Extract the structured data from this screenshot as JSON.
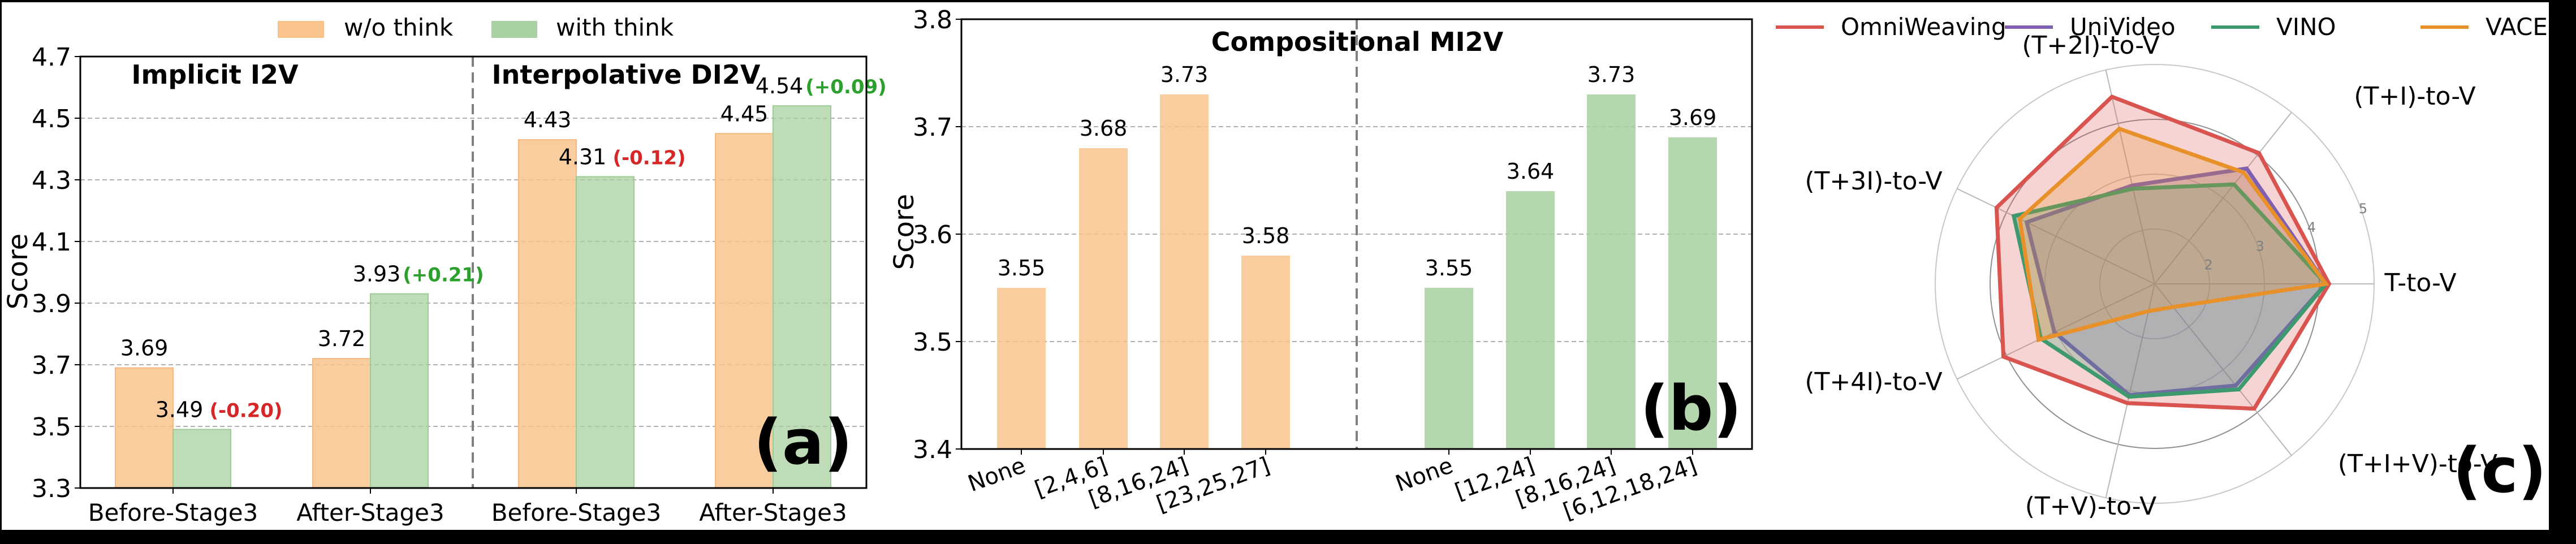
{
  "colors": {
    "wo_think": "#f8c48c",
    "with_think": "#a8d0a0",
    "delta_up": "#2ca02c",
    "delta_down": "#d62728",
    "grid": "#b0b0b0",
    "divider": "#808080"
  },
  "chart_data": [
    {
      "id": "a",
      "type": "bar",
      "panel_label": "(a)",
      "ylabel": "Score",
      "ylim": [
        3.3,
        4.7
      ],
      "yticks": [
        3.3,
        3.5,
        3.7,
        3.9,
        4.1,
        4.3,
        4.5,
        4.7
      ],
      "grid": true,
      "legend": [
        "w/o think",
        "with think"
      ],
      "legend_position": "top-center",
      "groups": [
        {
          "title": "Implicit I2V",
          "categories": [
            "Before-Stage3",
            "After-Stage3"
          ]
        },
        {
          "title": "Interpolative DI2V",
          "categories": [
            "Before-Stage3",
            "After-Stage3"
          ]
        }
      ],
      "categories": [
        "Before-Stage3",
        "After-Stage3",
        "Before-Stage3",
        "After-Stage3"
      ],
      "series": [
        {
          "name": "w/o think",
          "values": [
            3.69,
            3.72,
            4.43,
            4.45
          ]
        },
        {
          "name": "with think",
          "values": [
            3.49,
            3.93,
            4.31,
            4.54
          ]
        }
      ],
      "value_labels": {
        "w/o think": [
          "3.69",
          "3.72",
          "4.43",
          "4.45"
        ],
        "with think": [
          "3.49",
          "3.93",
          "4.31",
          "4.54"
        ]
      },
      "delta_labels": [
        "(-0.20)",
        "(+0.21)",
        "(-0.12)",
        "(+0.09)"
      ]
    },
    {
      "id": "b",
      "type": "bar",
      "panel_label": "(b)",
      "title": "Compositional MI2V",
      "ylabel": "Score",
      "ylim": [
        3.4,
        3.8
      ],
      "yticks": [
        3.4,
        3.5,
        3.6,
        3.7,
        3.8
      ],
      "grid": true,
      "series": [
        {
          "name": "w/o think",
          "categories": [
            "None",
            "[2,4,6]",
            "[8,16,24]",
            "[23,25,27]"
          ],
          "values": [
            3.55,
            3.68,
            3.73,
            3.58
          ]
        },
        {
          "name": "with think",
          "categories": [
            "None",
            "[12,24]",
            "[8,16,24]",
            "[6,12,18,24]"
          ],
          "values": [
            3.55,
            3.64,
            3.73,
            3.69
          ]
        }
      ]
    },
    {
      "id": "c",
      "type": "radar",
      "panel_label": "(c)",
      "axes": [
        "T-to-V",
        "(T+I)-to-V",
        "(T+2I)-to-V",
        "(T+3I)-to-V",
        "(T+4I)-to-V",
        "(T+V)-to-V",
        "(T+I+V)-to-V"
      ],
      "rings": [
        2,
        3,
        4,
        5
      ],
      "rlim": [
        1,
        5
      ],
      "legend_position": "top",
      "series": [
        {
          "name": "OmniWeaving",
          "color": "#d9534f",
          "values": [
            4.18,
            4.05,
            4.5,
            4.2,
            4.06,
            3.23,
            3.91
          ]
        },
        {
          "name": "UniVideo",
          "color": "#7f5fb0",
          "values": [
            4.12,
            3.69,
            2.84,
            3.59,
            3.03,
            3.08,
            3.37
          ]
        },
        {
          "name": "VINO",
          "color": "#3e9a6e",
          "values": [
            4.12,
            3.32,
            2.78,
            3.85,
            3.3,
            3.11,
            3.46
          ]
        },
        {
          "name": "VACE",
          "color": "#e8912a",
          "values": [
            4.12,
            3.6,
            3.9,
            3.73,
            3.35,
            1.51,
            1.54
          ]
        }
      ]
    }
  ]
}
